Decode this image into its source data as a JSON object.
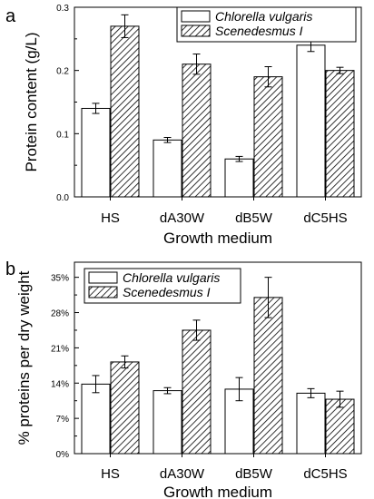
{
  "chart_data": [
    {
      "type": "bar",
      "panel_label": "a",
      "categories": [
        "HS",
        "dA30W",
        "dB5W",
        "dC5HS"
      ],
      "series": [
        {
          "name": "Chlorella vulgaris",
          "values": [
            0.14,
            0.09,
            0.06,
            0.24
          ],
          "errors": [
            0.008,
            0.004,
            0.004,
            0.01
          ],
          "pattern": "white"
        },
        {
          "name": "Scenedesmus I",
          "values": [
            0.27,
            0.21,
            0.19,
            0.2
          ],
          "errors": [
            0.018,
            0.016,
            0.016,
            0.005
          ],
          "pattern": "hatched"
        }
      ],
      "xlabel": "Growth medium",
      "ylabel": "Protein content (g/L)",
      "ylim": [
        0,
        0.3
      ],
      "yticks": [
        0.0,
        0.1,
        0.2,
        0.3
      ],
      "ytick_labels": [
        "0.0",
        "0.1",
        "0.2",
        "0.3"
      ],
      "legend_position": "top-right",
      "grid": false
    },
    {
      "type": "bar",
      "panel_label": "b",
      "categories": [
        "HS",
        "dA30W",
        "dB5W",
        "dC5HS"
      ],
      "series": [
        {
          "name": "Chlorella vulgaris",
          "values": [
            13.8,
            12.5,
            12.8,
            12.0
          ],
          "errors": [
            1.7,
            0.6,
            2.3,
            0.9
          ],
          "pattern": "white"
        },
        {
          "name": "Scenedesmus I",
          "values": [
            18.2,
            24.5,
            31.0,
            10.8
          ],
          "errors": [
            1.2,
            2.0,
            4.0,
            1.6
          ],
          "pattern": "hatched"
        }
      ],
      "xlabel": "Growth medium",
      "ylabel": "% proteins per dry weight",
      "ylim": [
        0,
        38
      ],
      "yticks": [
        0,
        7,
        14,
        21,
        28,
        35
      ],
      "ytick_labels": [
        "0%",
        "7%",
        "14%",
        "21%",
        "28%",
        "35%"
      ],
      "legend_position": "top-left",
      "grid": false
    }
  ]
}
